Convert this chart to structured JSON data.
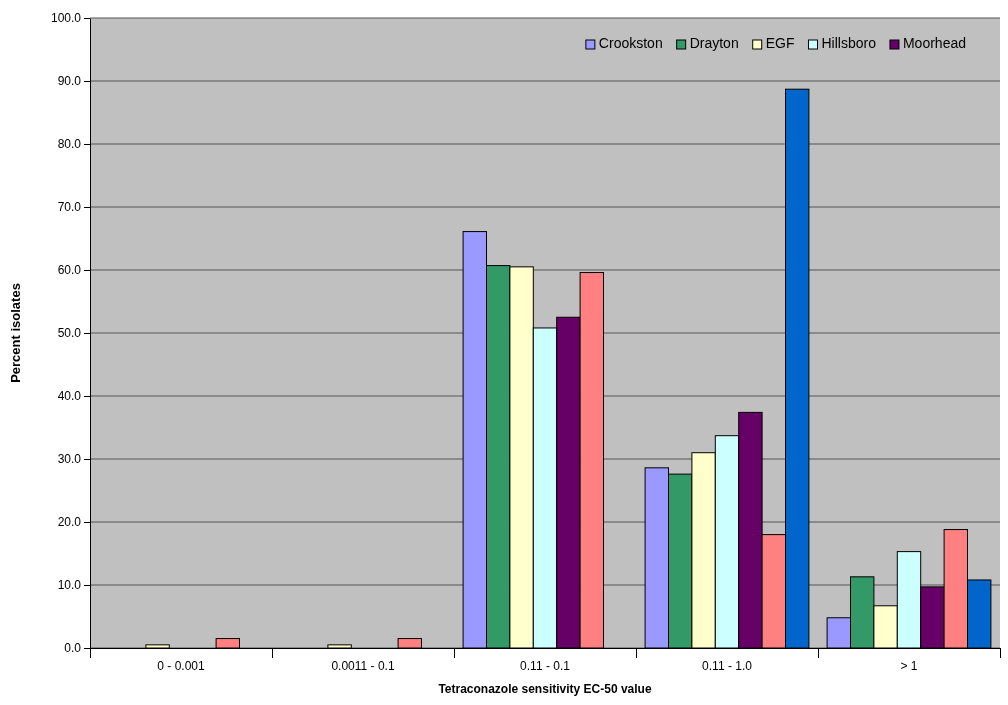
{
  "chart_data": {
    "type": "bar",
    "xlabel": "Tetraconazole sensitivity EC-50 value",
    "ylabel": "Percent isolates",
    "categories": [
      "0 - 0.001",
      "0.0011 - 0.1",
      "0.11 - 0.1",
      "0.11 - 1.0",
      "> 1"
    ],
    "series": [
      {
        "name": "Crookston",
        "color": "#9999ff",
        "values": [
          0,
          0,
          66.1,
          28.6,
          4.8
        ]
      },
      {
        "name": "Drayton",
        "color": "#339966",
        "values": [
          0,
          0,
          60.7,
          27.6,
          11.3
        ]
      },
      {
        "name": "EGF",
        "color": "#ffffcc",
        "values": [
          0.5,
          0.5,
          60.5,
          31.0,
          6.7
        ]
      },
      {
        "name": "Hillsboro",
        "color": "#ccffff",
        "values": [
          0,
          0,
          50.8,
          33.7,
          15.3
        ]
      },
      {
        "name": "Moorhead",
        "color": "#660066",
        "values": [
          0,
          0,
          52.5,
          37.4,
          9.7
        ]
      },
      {
        "color": "#ff8080",
        "values": [
          1.5,
          1.5,
          59.6,
          18.0,
          18.8
        ]
      },
      {
        "color": "#0066cc",
        "values": [
          0,
          0,
          0,
          88.7,
          10.8
        ]
      }
    ],
    "ylim": [
      0,
      100
    ],
    "yticks": [
      {
        "value": 0,
        "label": "0.0"
      },
      {
        "value": 10,
        "label": "10.0"
      },
      {
        "value": 20,
        "label": "20.0"
      },
      {
        "value": 30,
        "label": "30.0"
      },
      {
        "value": 40,
        "label": "40.0"
      },
      {
        "value": 50,
        "label": "50.0"
      },
      {
        "value": 60,
        "label": "60.0"
      },
      {
        "value": 70,
        "label": "70.0"
      },
      {
        "value": 80,
        "label": "80.0"
      },
      {
        "value": 90,
        "label": "90.0"
      },
      {
        "value": 100,
        "label": "100.0"
      }
    ],
    "grid": "y",
    "legend": "top right"
  }
}
